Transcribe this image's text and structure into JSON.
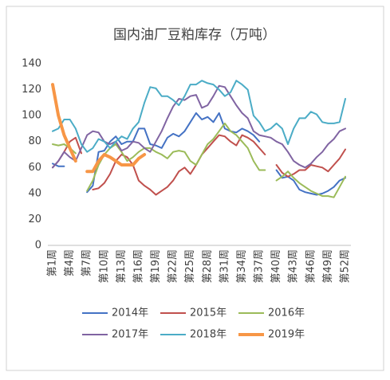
{
  "chart_data": {
    "type": "line",
    "title": "国内油厂豆粕库存（万吨）",
    "categories": [
      "第1周",
      null,
      null,
      "第4周",
      null,
      null,
      "第7周",
      null,
      null,
      "第10周",
      null,
      null,
      "第13周",
      null,
      null,
      "第16周",
      null,
      null,
      "第19周",
      null,
      null,
      "第22周",
      null,
      null,
      "第25周",
      null,
      null,
      "第28周",
      null,
      null,
      "第31周",
      null,
      null,
      "第34周",
      null,
      null,
      "第37周",
      null,
      null,
      "第40周",
      null,
      null,
      "第43周",
      null,
      null,
      "第46周",
      null,
      null,
      "第49周",
      null,
      null,
      "第52周"
    ],
    "ylim": [
      0,
      140
    ],
    "yticks": [
      0,
      20,
      40,
      60,
      80,
      100,
      120,
      140
    ],
    "grid": false,
    "series": [
      {
        "name": "2014年",
        "color": "#4472c4",
        "width": 2,
        "values": [
          63,
          61,
          61,
          null,
          null,
          null,
          41,
          46,
          72,
          73,
          80,
          84,
          78,
          80,
          80,
          90,
          90,
          78,
          77,
          75,
          83,
          86,
          84,
          88,
          95,
          102,
          97,
          99,
          95,
          102,
          90,
          88,
          87,
          90,
          88,
          85,
          80,
          null,
          null,
          58,
          52,
          53,
          50,
          43,
          41,
          40,
          39,
          40,
          42,
          45,
          50,
          52
        ]
      },
      {
        "name": "2015年",
        "color": "#c0504d",
        "width": 2,
        "values": [
          60,
          65,
          72,
          80,
          83,
          71,
          null,
          43,
          44,
          48,
          55,
          65,
          70,
          68,
          62,
          50,
          46,
          43,
          39,
          42,
          45,
          50,
          57,
          60,
          55,
          62,
          70,
          75,
          80,
          85,
          84,
          80,
          77,
          85,
          83,
          80,
          75,
          70,
          null,
          62,
          56,
          53,
          55,
          58,
          58,
          62,
          61,
          60,
          57,
          62,
          67,
          74
        ]
      },
      {
        "name": "2016年",
        "color": "#9bbb59",
        "width": 2,
        "values": [
          78,
          77,
          78,
          75,
          71,
          null,
          42,
          50,
          62,
          70,
          75,
          78,
          72,
          65,
          68,
          72,
          75,
          75,
          72,
          70,
          67,
          72,
          73,
          72,
          65,
          62,
          70,
          78,
          82,
          88,
          94,
          88,
          85,
          80,
          75,
          65,
          58,
          58,
          null,
          50,
          53,
          57,
          52,
          48,
          45,
          42,
          40,
          38,
          38,
          37,
          45,
          53
        ]
      },
      {
        "name": "2017年",
        "color": "#8064a2",
        "width": 2,
        "values": [
          60,
          65,
          72,
          68,
          65,
          75,
          85,
          88,
          87,
          80,
          78,
          80,
          73,
          75,
          80,
          79,
          75,
          72,
          80,
          88,
          98,
          107,
          113,
          112,
          115,
          116,
          106,
          108,
          115,
          123,
          122,
          115,
          108,
          102,
          98,
          88,
          85,
          84,
          83,
          80,
          78,
          72,
          65,
          62,
          60,
          63,
          68,
          72,
          78,
          82,
          88,
          90
        ]
      },
      {
        "name": "2018年",
        "color": "#4bacc6",
        "width": 2,
        "values": [
          88,
          90,
          97,
          97,
          90,
          78,
          72,
          75,
          82,
          80,
          75,
          80,
          84,
          82,
          90,
          95,
          110,
          122,
          121,
          115,
          115,
          112,
          108,
          115,
          124,
          124,
          127,
          125,
          124,
          120,
          115,
          118,
          127,
          124,
          120,
          100,
          95,
          88,
          90,
          94,
          90,
          78,
          90,
          98,
          98,
          103,
          101,
          95,
          94,
          94,
          95,
          113
        ]
      },
      {
        "name": "2019年",
        "color": "#f79646",
        "width": 4,
        "values": [
          124,
          100,
          85,
          75,
          65,
          null,
          57,
          57,
          65,
          70,
          68,
          65,
          62,
          62,
          62,
          67,
          70,
          null,
          null,
          null,
          null,
          null,
          null,
          null,
          null,
          null,
          null,
          null,
          null,
          null,
          null,
          null,
          null,
          null,
          null,
          null,
          null,
          null,
          null,
          null,
          null,
          null,
          null,
          null,
          null,
          null,
          null,
          null,
          null,
          null,
          null,
          null
        ]
      }
    ]
  }
}
